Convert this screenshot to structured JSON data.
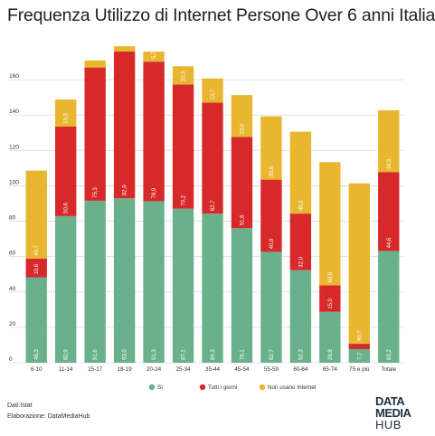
{
  "chart_data": {
    "type": "bar",
    "stacked": true,
    "title": "Frequenza Utilizzo di Internet Persone Over 6 anni Italia",
    "categories": [
      "6-10",
      "11-14",
      "15-17",
      "18-19",
      "20-24",
      "25-34",
      "35-44",
      "45-54",
      "55-59",
      "60-64",
      "65-74",
      "75 e più",
      "Totale"
    ],
    "series": [
      {
        "name": "Sì",
        "color": "#6ab18b",
        "values": [
          48.3,
          82.9,
          91.6,
          93.0,
          91.3,
          87.1,
          84.3,
          76.1,
          62.7,
          52.3,
          28.8,
          7.7,
          63.2
        ],
        "labels": [
          "48,3",
          "82,9",
          "91,6",
          "93,0",
          "91,3",
          "87,1",
          "84,3",
          "76,1",
          "62,7",
          "52,3",
          "28,8",
          "7,7",
          "63,2"
        ]
      },
      {
        "name": "Tutti i giorni",
        "color": "#d7282a",
        "values": [
          10.6,
          50.6,
          75.3,
          82.9,
          78.9,
          70.2,
          62.7,
          51.6,
          40.8,
          32.0,
          15.0,
          3.0,
          44.6
        ],
        "labels": [
          "10,6",
          "50,6",
          "75,3",
          "82,9",
          "78,9",
          "70,2",
          "62,7",
          "51,6",
          "40,8",
          "32,0",
          "15,0",
          "",
          "44,6"
        ]
      },
      {
        "name": "Non usano Internet",
        "color": "#e8b72f",
        "values": [
          49.7,
          15.3,
          4.0,
          3.0,
          5.7,
          10.3,
          13.7,
          23.6,
          35.8,
          46.3,
          69.6,
          90.7,
          34.9
        ],
        "labels": [
          "49,7",
          "15,3",
          "",
          "",
          "5,7",
          "10,3",
          "13,7",
          "23,6",
          "35,8",
          "46,3",
          "69,6",
          "90,7",
          "34,9"
        ]
      }
    ],
    "ylim": [
      0,
      180
    ],
    "yticks": [
      0,
      20,
      40,
      60,
      80,
      100,
      120,
      140,
      160
    ],
    "grid": true,
    "legend_position": "bottom"
  },
  "source": {
    "dati": "Dati:Istat",
    "elaborazione": "Elaborazione: DataMediaHub"
  },
  "logo": {
    "line1": "DATA",
    "line2": "MEDIA",
    "line3": "HUB"
  }
}
